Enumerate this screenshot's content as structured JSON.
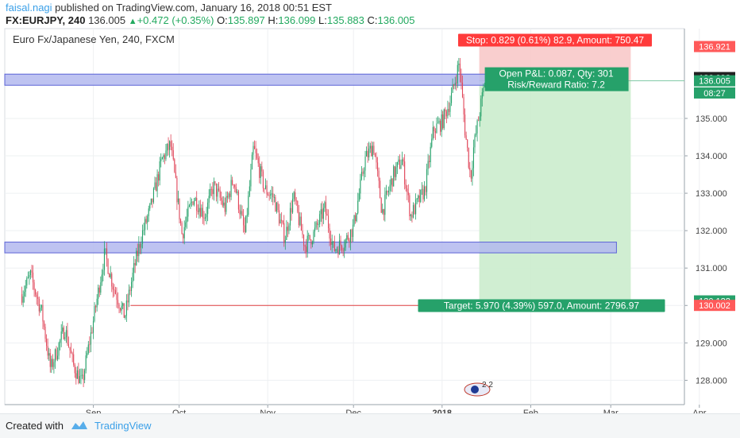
{
  "header": {
    "user": "faisal.nagi",
    "published": " published on TradingView.com, January 16, 2018 00:51 EST",
    "symbol": "FX:EURJPY, 240",
    "price": "136.005",
    "triangle": "▲",
    "change": "+0.472 (+0.35%)",
    "o_label": "O:",
    "o": "135.897",
    "h_label": "H:",
    "h": "136.099",
    "l_label": "L:",
    "l": "135.883",
    "c_label": "C:",
    "c": "136.005"
  },
  "footer": {
    "created_with": "Created with",
    "brand": "TradingView"
  },
  "colors": {
    "up": "#22a95f",
    "down": "#ff5a5a",
    "candle_up": "#26a16a",
    "candle_down": "#e0475a",
    "profit_zone": "#cbeccd",
    "loss_zone": "#f8c9c9",
    "zone_rect": "#b3b9ef",
    "zone_stroke": "#5b63d6",
    "accent": "#3ba0e8"
  },
  "chart_data": {
    "type": "candlestick",
    "title": "Euro Fx/Japanese Yen, 240, FXCM",
    "ylim": [
      127.35,
      137.4
    ],
    "yticks": [
      "128.000",
      "129.000",
      "130.000",
      "131.000",
      "132.000",
      "133.000",
      "134.000",
      "135.000"
    ],
    "xticks": [
      "Sep",
      "Oct",
      "Nov",
      "Dec",
      "2018",
      "Feb",
      "Mar",
      "Apr"
    ],
    "close_path": [
      {
        "date": "2017-08-07",
        "price": 130.3
      },
      {
        "date": "2017-08-10",
        "price": 130.8
      },
      {
        "date": "2017-08-14",
        "price": 129.8
      },
      {
        "date": "2017-08-17",
        "price": 128.3
      },
      {
        "date": "2017-08-22",
        "price": 129.4
      },
      {
        "date": "2017-08-25",
        "price": 128.4
      },
      {
        "date": "2017-08-28",
        "price": 127.9
      },
      {
        "date": "2017-09-01",
        "price": 129.6
      },
      {
        "date": "2017-09-05",
        "price": 131.4
      },
      {
        "date": "2017-09-08",
        "price": 130.5
      },
      {
        "date": "2017-09-12",
        "price": 129.7
      },
      {
        "date": "2017-09-15",
        "price": 130.9
      },
      {
        "date": "2017-09-18",
        "price": 131.9
      },
      {
        "date": "2017-09-21",
        "price": 132.6
      },
      {
        "date": "2017-09-25",
        "price": 133.9
      },
      {
        "date": "2017-09-28",
        "price": 134.3
      },
      {
        "date": "2017-10-02",
        "price": 131.9
      },
      {
        "date": "2017-10-06",
        "price": 132.9
      },
      {
        "date": "2017-10-10",
        "price": 132.4
      },
      {
        "date": "2017-10-13",
        "price": 133.2
      },
      {
        "date": "2017-10-17",
        "price": 132.6
      },
      {
        "date": "2017-10-20",
        "price": 133.4
      },
      {
        "date": "2017-10-24",
        "price": 131.9
      },
      {
        "date": "2017-10-27",
        "price": 134.2
      },
      {
        "date": "2017-10-31",
        "price": 133.1
      },
      {
        "date": "2017-11-03",
        "price": 132.9
      },
      {
        "date": "2017-11-07",
        "price": 131.8
      },
      {
        "date": "2017-11-10",
        "price": 132.9
      },
      {
        "date": "2017-11-14",
        "price": 131.6
      },
      {
        "date": "2017-11-17",
        "price": 131.9
      },
      {
        "date": "2017-11-21",
        "price": 132.6
      },
      {
        "date": "2017-11-24",
        "price": 131.5
      },
      {
        "date": "2017-11-28",
        "price": 131.7
      },
      {
        "date": "2017-12-01",
        "price": 132.1
      },
      {
        "date": "2017-12-05",
        "price": 133.9
      },
      {
        "date": "2017-12-08",
        "price": 134.3
      },
      {
        "date": "2017-12-11",
        "price": 132.5
      },
      {
        "date": "2017-12-15",
        "price": 133.5
      },
      {
        "date": "2017-12-18",
        "price": 133.9
      },
      {
        "date": "2017-12-21",
        "price": 132.4
      },
      {
        "date": "2017-12-26",
        "price": 133.1
      },
      {
        "date": "2017-12-29",
        "price": 134.7
      },
      {
        "date": "2018-01-01",
        "price": 134.9
      },
      {
        "date": "2018-01-04",
        "price": 135.5
      },
      {
        "date": "2018-01-07",
        "price": 136.5
      },
      {
        "date": "2018-01-09",
        "price": 134.7
      },
      {
        "date": "2018-01-11",
        "price": 133.4
      },
      {
        "date": "2018-01-12",
        "price": 134.2
      },
      {
        "date": "2018-01-16",
        "price": 136.0
      }
    ],
    "resistance_zone": {
      "from": "2017-08-01",
      "to": "2018-01-31",
      "low": 135.95,
      "high": 136.12
    },
    "support_zone": {
      "from": "2017-08-01",
      "to": "2018-03-03",
      "low": 131.47,
      "high": 131.63
    },
    "target_line": {
      "from": "2017-09-14",
      "to": "2018-03-10",
      "price": 130.0
    },
    "position": {
      "from": "2018-01-14",
      "to": "2018-03-08",
      "entry": 136.005,
      "stop": 136.921,
      "target": 130.122,
      "stop_label": "Stop: 0.829 (0.61%) 82.9, Amount: 750.47",
      "pnl_label": "Open P&L: 0.087, Qty: 301",
      "rr_label": "Risk/Reward Ratio: 7.2",
      "target_label": "Target: 5.970 (4.39%) 597.0, Amount: 2796.97"
    },
    "price_labels": [
      {
        "text": "136.921",
        "price": 136.921,
        "color": "#ff5a5a"
      },
      {
        "text": "136.092",
        "price": 136.092,
        "color": "#222222"
      },
      {
        "text": "136.005",
        "price": 136.005,
        "color": "#26a16a"
      },
      {
        "text": "08:27",
        "price": 135.68,
        "color": "#26a16a"
      },
      {
        "text": "130.122",
        "price": 130.122,
        "color": "#26a16a"
      },
      {
        "text": "130.002",
        "price": 130.002,
        "color": "#ff5a5a"
      }
    ],
    "event_marker": "2 2"
  }
}
